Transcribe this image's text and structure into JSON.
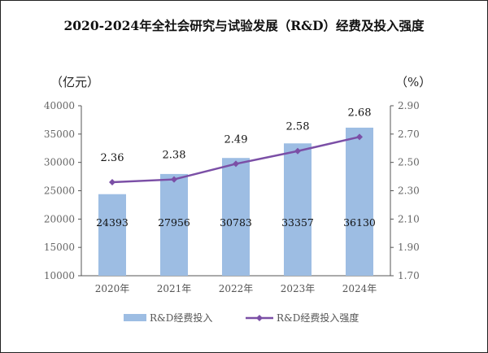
{
  "chart_data": {
    "type": "bar+line",
    "title": "2020-2024年全社会研究与试验发展（R&D）经费及投入强度",
    "categories": [
      "2020年",
      "2021年",
      "2022年",
      "2023年",
      "2024年"
    ],
    "left_axis": {
      "unit_label": "（亿元）",
      "range": [
        10000,
        40000
      ],
      "ticks": [
        "10000",
        "15000",
        "20000",
        "25000",
        "30000",
        "35000",
        "40000"
      ]
    },
    "right_axis": {
      "unit_label": "（%）",
      "range": [
        1.7,
        2.9
      ],
      "ticks": [
        "1.70",
        "1.90",
        "2.10",
        "2.30",
        "2.50",
        "2.70",
        "2.90"
      ]
    },
    "series": [
      {
        "name": "R&D经费投入",
        "type": "bar",
        "axis": "left",
        "values": [
          24393,
          27956,
          30783,
          33357,
          36130
        ],
        "labels": [
          "24393",
          "27956",
          "30783",
          "33357",
          "36130"
        ],
        "color": "#9dbde3"
      },
      {
        "name": "R&D经费投入强度",
        "type": "line",
        "axis": "right",
        "values": [
          2.36,
          2.38,
          2.49,
          2.58,
          2.68
        ],
        "labels": [
          "2.36",
          "2.38",
          "2.49",
          "2.58",
          "2.68"
        ],
        "color": "#7b4fa6"
      }
    ],
    "grid": false,
    "legend": "bottom"
  }
}
